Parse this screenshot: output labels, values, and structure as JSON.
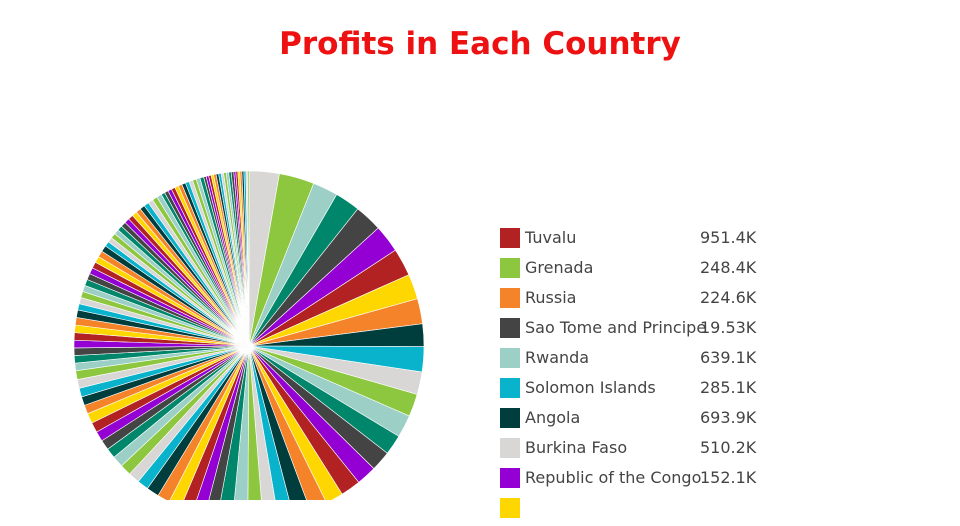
{
  "chart_data": {
    "type": "pie",
    "title": "Profits in Each Country",
    "legend_position": "right",
    "legend": [
      {
        "label": "Tuvalu",
        "value": "951.4K",
        "color": "#b22222"
      },
      {
        "label": "Grenada",
        "value": "248.4K",
        "color": "#8dc63f"
      },
      {
        "label": "Russia",
        "value": "224.6K",
        "color": "#f5832a"
      },
      {
        "label": "Sao Tome and Principe",
        "value": "19.53K",
        "color": "#444444"
      },
      {
        "label": "Rwanda",
        "value": "639.1K",
        "color": "#9ccfc5"
      },
      {
        "label": "Solomon Islands",
        "value": "285.1K",
        "color": "#0ab3cc"
      },
      {
        "label": "Angola",
        "value": "693.9K",
        "color": "#003d3d"
      },
      {
        "label": "Burkina Faso",
        "value": "510.2K",
        "color": "#d9d7d5"
      },
      {
        "label": "Republic of the Congo",
        "value": "152.1K",
        "color": "#9400d3"
      },
      {
        "label": "",
        "value": "",
        "color": "#ffd700"
      }
    ],
    "palette": [
      "#d9d7d5",
      "#8dc63f",
      "#9ccfc5",
      "#00876b",
      "#444444",
      "#9400d3",
      "#b22222",
      "#ffd700",
      "#f5832a",
      "#003d3d",
      "#0ab3cc"
    ],
    "slices_deg": [
      12,
      14,
      10,
      10,
      11,
      11,
      11,
      10,
      10,
      9,
      10,
      9,
      9,
      9,
      8,
      8,
      8,
      8,
      7,
      7,
      7,
      6,
      6,
      6,
      6,
      6,
      5,
      5,
      5,
      5,
      5,
      5,
      4.5,
      4.5,
      4.5,
      4.5,
      4,
      4,
      4,
      4,
      4,
      3.5,
      3.5,
      3.5,
      3.5,
      3.5,
      3,
      3,
      3,
      3,
      3,
      3,
      3,
      3,
      2.5,
      2.5,
      2.5,
      2.5,
      2.5,
      2.5,
      2.5,
      2.5,
      2.5,
      2.5,
      2.5,
      2,
      2,
      2,
      2,
      2,
      2,
      2,
      2,
      2,
      2,
      2,
      2,
      2,
      2,
      2,
      1.5,
      1.5,
      1.5,
      1.5,
      1.5,
      1.5,
      1.5,
      1.5,
      1.5,
      1.5,
      1.5,
      1.5,
      1,
      1,
      1,
      1,
      1,
      1,
      1,
      1,
      1,
      1,
      1,
      1,
      0.8,
      0.8,
      0.8,
      0.8,
      0.8,
      0.8,
      0.6,
      0.6
    ]
  }
}
